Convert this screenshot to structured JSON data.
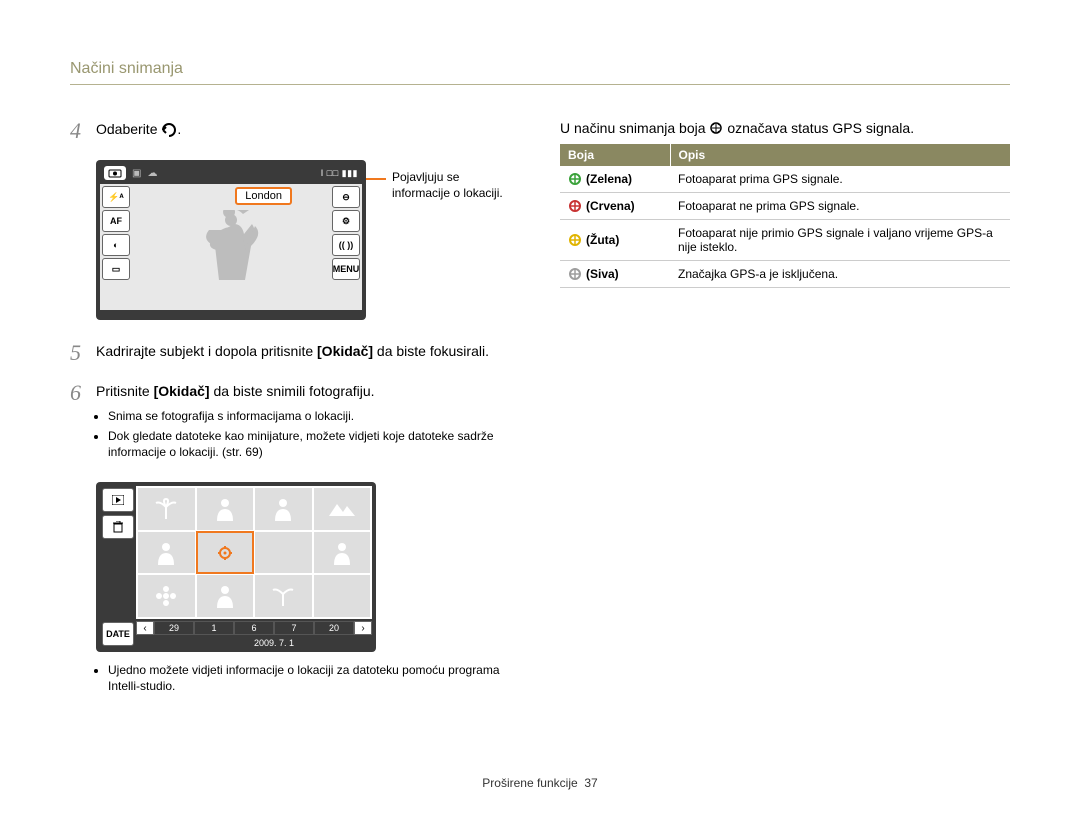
{
  "section_title": "Načini snimanja",
  "steps": {
    "s4": {
      "num": "4",
      "text_prefix": "Odaberite ",
      "london": "London",
      "annot_l1": "Pojavljuju se",
      "annot_l2": "informacije o lokaciji."
    },
    "s5": {
      "num": "5",
      "text": "Kadrirajte subjekt i dopola pritisnite [Okidač] da biste fokusirali.",
      "plain_before": "Kadrirajte subjekt i dopola pritisnite ",
      "bold": "[Okidač]",
      "plain_after": " da biste fokusirali."
    },
    "s6": {
      "num": "6",
      "plain_before": "Pritisnite ",
      "bold": "[Okidač]",
      "plain_after": " da biste snimili fotografiju."
    }
  },
  "bullets6": [
    "Snima se fotografija s informacijama o lokaciji.",
    "Dok gledate datoteke kao minijature, možete vidjeti koje datoteke sadrže informacije o lokaciji. (str. 69)"
  ],
  "bullets_view": [
    "Ujedno možete vidjeti informacije o lokaciji za datoteku pomoću programa Intelli-studio."
  ],
  "cam_side_left": [
    "⚡ᴬ",
    "AF",
    "◐",
    "▭"
  ],
  "cam_side_right": [
    "⊖",
    "⚙",
    "(( ))",
    "MENU"
  ],
  "cam_top_right": "I  □□  ▮▮▮",
  "gps_intro_before": "U načinu snimanja boja ",
  "gps_intro_after": " označava status GPS signala.",
  "table": {
    "head": [
      "Boja",
      "Opis"
    ],
    "rows": [
      {
        "color": "#3aa23a",
        "label": "(Zelena)",
        "desc": "Fotoaparat prima GPS signale."
      },
      {
        "color": "#c83232",
        "label": "(Crvena)",
        "desc": "Fotoaparat ne prima GPS signale."
      },
      {
        "color": "#e0b400",
        "label": "(Žuta)",
        "desc": "Fotoaparat nije primio GPS signale i valjano vrijeme GPS-a nije isteklo."
      },
      {
        "color": "#9e9e9e",
        "label": "(Siva)",
        "desc": "Značajka GPS-a je isključena."
      }
    ]
  },
  "gallery": {
    "strip": [
      "29",
      "1",
      "6",
      "7",
      "20"
    ],
    "date": "2009. 7. 1",
    "side_date": "DATE"
  },
  "footer_text": "Proširene funkcije",
  "footer_page": "37"
}
